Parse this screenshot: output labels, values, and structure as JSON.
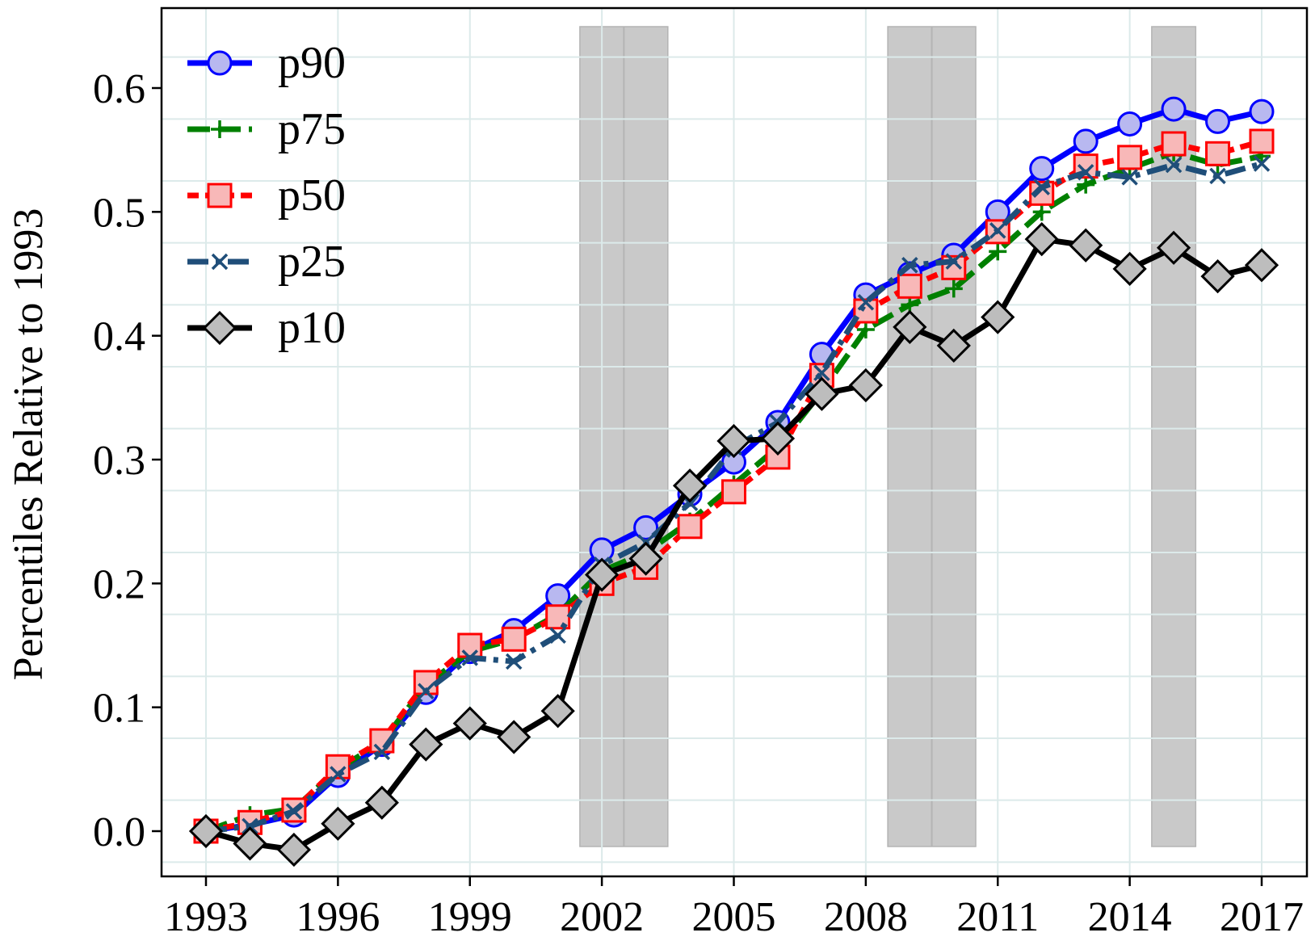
{
  "chart_data": {
    "type": "line",
    "ylabel": "Percentiles Relative to 1993",
    "xlabel": "",
    "title": "",
    "x": [
      1993,
      1994,
      1995,
      1996,
      1997,
      1998,
      1999,
      2000,
      2001,
      2002,
      2003,
      2004,
      2005,
      2006,
      2007,
      2008,
      2009,
      2010,
      2011,
      2012,
      2013,
      2014,
      2015,
      2016,
      2017
    ],
    "xlim": [
      1993,
      2017
    ],
    "ylim": [
      -0.025,
      0.65
    ],
    "xticks": [
      1993,
      1996,
      1999,
      2002,
      2005,
      2008,
      2011,
      2014,
      2017
    ],
    "xtick_labels": [
      "1993",
      "1996",
      "1999",
      "2002",
      "2005",
      "2008",
      "2011",
      "2014",
      "2017"
    ],
    "yticks": [
      0.0,
      0.1,
      0.2,
      0.3,
      0.4,
      0.5,
      0.6
    ],
    "ytick_labels": [
      "0.0",
      "0.1",
      "0.2",
      "0.3",
      "0.4",
      "0.5",
      "0.6"
    ],
    "grid": true,
    "legend_position": "top-left",
    "shaded_periods": [
      [
        2001.5,
        2003.5
      ],
      [
        2008.5,
        2010.5
      ],
      [
        2014.5,
        2015.5
      ]
    ],
    "shaded_dividers": [
      2002.5,
      2009.5
    ],
    "series": [
      {
        "name": "p90",
        "color": "#0000ff",
        "marker": "circle",
        "dash": "solid",
        "values": [
          0.0,
          0.005,
          0.013,
          0.045,
          0.07,
          0.112,
          0.145,
          0.162,
          0.19,
          0.227,
          0.245,
          0.272,
          0.298,
          0.33,
          0.385,
          0.433,
          0.45,
          0.465,
          0.5,
          0.535,
          0.557,
          0.571,
          0.583,
          0.573,
          0.581
        ]
      },
      {
        "name": "p75",
        "color": "#008000",
        "marker": "plus",
        "dash": "dash",
        "values": [
          0.0,
          0.013,
          0.018,
          0.05,
          0.072,
          0.118,
          0.145,
          0.155,
          0.175,
          0.21,
          0.225,
          0.25,
          0.28,
          0.31,
          0.355,
          0.405,
          0.425,
          0.438,
          0.468,
          0.5,
          0.522,
          0.535,
          0.548,
          0.538,
          0.545
        ]
      },
      {
        "name": "p50",
        "color": "#ff0000",
        "marker": "square",
        "dash": "shortdash",
        "values": [
          0.0,
          0.007,
          0.017,
          0.052,
          0.073,
          0.12,
          0.15,
          0.155,
          0.173,
          0.2,
          0.213,
          0.246,
          0.274,
          0.302,
          0.368,
          0.42,
          0.44,
          0.455,
          0.484,
          0.515,
          0.537,
          0.544,
          0.555,
          0.547,
          0.557
        ]
      },
      {
        "name": "p25",
        "color": "#1f4e79",
        "marker": "x",
        "dash": "dashdot",
        "values": [
          0.0,
          0.004,
          0.016,
          0.046,
          0.064,
          0.113,
          0.14,
          0.137,
          0.158,
          0.215,
          0.233,
          0.265,
          0.31,
          0.33,
          0.37,
          0.427,
          0.457,
          0.46,
          0.485,
          0.52,
          0.532,
          0.528,
          0.538,
          0.529,
          0.539
        ]
      },
      {
        "name": "p10",
        "color": "#000000",
        "marker": "diamond",
        "dash": "solid",
        "values": [
          0.0,
          -0.01,
          -0.015,
          0.006,
          0.023,
          0.07,
          0.087,
          0.076,
          0.097,
          0.207,
          0.22,
          0.279,
          0.315,
          0.317,
          0.353,
          0.36,
          0.407,
          0.392,
          0.415,
          0.478,
          0.473,
          0.454,
          0.471,
          0.448,
          0.457
        ]
      }
    ]
  }
}
